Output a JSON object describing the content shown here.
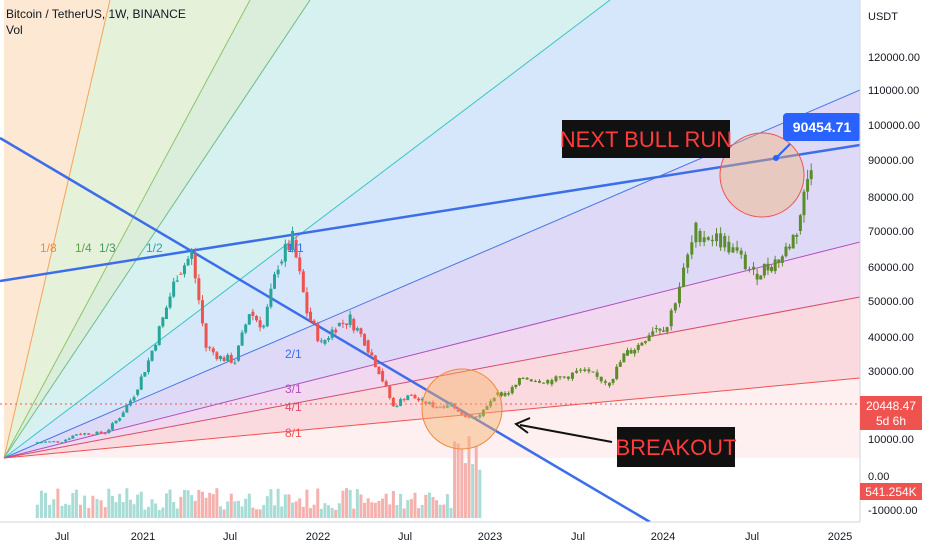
{
  "header": {
    "symbol_line": "Bitcoin / TetherUS, 1W, BINANCE",
    "vol_label": "Vol"
  },
  "chart_data": {
    "type": "candlestick",
    "currency": "USDT",
    "y_ticks": [
      "120000.00",
      "110000.00",
      "100000.00",
      "90000.00",
      "80000.00",
      "70000.00",
      "60000.00",
      "50000.00",
      "40000.00",
      "30000.00",
      "10000.00"
    ],
    "y_tick_values": [
      120000,
      110000,
      100000,
      90000,
      80000,
      70000,
      60000,
      50000,
      40000,
      30000,
      10000
    ],
    "vol_ticks": [
      "0.00",
      "-10000.00"
    ],
    "x_ticks": [
      "Jul",
      "2021",
      "Jul",
      "2022",
      "Jul",
      "2023",
      "Jul",
      "2024",
      "Jul",
      "2025"
    ],
    "current_price": "20448.47",
    "countdown": "5d 6h",
    "volume_value": "541.254K",
    "target_price": "90454.71",
    "fan_labels": [
      "1/8",
      "1/4",
      "1/3",
      "1/2",
      "1/1",
      "2/1",
      "3/1",
      "4/1",
      "8/1"
    ],
    "annotations": [
      "NEXT BULL RUN",
      "BREAKOUT"
    ],
    "price_series": [
      [
        "2020-05",
        9000
      ],
      [
        "2020-07",
        9300
      ],
      [
        "2020-08",
        11500
      ],
      [
        "2020-10",
        11800
      ],
      [
        "2020-11",
        16500
      ],
      [
        "2020-12",
        23000
      ],
      [
        "2021-01",
        33000
      ],
      [
        "2021-02",
        45000
      ],
      [
        "2021-03",
        58000
      ],
      [
        "2021-04",
        63500
      ],
      [
        "2021-05",
        37000
      ],
      [
        "2021-06",
        34000
      ],
      [
        "2021-07",
        33000
      ],
      [
        "2021-08",
        47000
      ],
      [
        "2021-09",
        43000
      ],
      [
        "2021-10",
        61000
      ],
      [
        "2021-11",
        67500
      ],
      [
        "2021-12",
        47000
      ],
      [
        "2022-01",
        38000
      ],
      [
        "2022-02",
        43000
      ],
      [
        "2022-03",
        45000
      ],
      [
        "2022-04",
        39000
      ],
      [
        "2022-05",
        30000
      ],
      [
        "2022-06",
        19500
      ],
      [
        "2022-07",
        23000
      ],
      [
        "2022-08",
        21000
      ],
      [
        "2022-09",
        19500
      ],
      [
        "2022-10",
        20500
      ],
      [
        "2022-11",
        17000
      ],
      [
        "2022-12",
        16800
      ],
      [
        "2023-01",
        23000
      ],
      [
        "2023-02",
        23500
      ],
      [
        "2023-03",
        28000
      ],
      [
        "2023-05",
        27000
      ],
      [
        "2023-07",
        30000
      ],
      [
        "2023-09",
        26500
      ],
      [
        "2023-10",
        34500
      ],
      [
        "2023-11",
        37500
      ],
      [
        "2023-12",
        42500
      ],
      [
        "2024-01",
        43000
      ],
      [
        "2024-03",
        70000
      ],
      [
        "2024-05",
        67000
      ],
      [
        "2024-07",
        58000
      ],
      [
        "2024-08",
        60000
      ],
      [
        "2024-09",
        63000
      ],
      [
        "2024-10",
        70000
      ],
      [
        "2024-11",
        90000
      ]
    ]
  },
  "colors": {
    "up": "#26a69a",
    "down": "#ef5350",
    "bull": "#5b8c2a",
    "trend": "#3b6ee8",
    "label_blue": "#2962ff"
  }
}
